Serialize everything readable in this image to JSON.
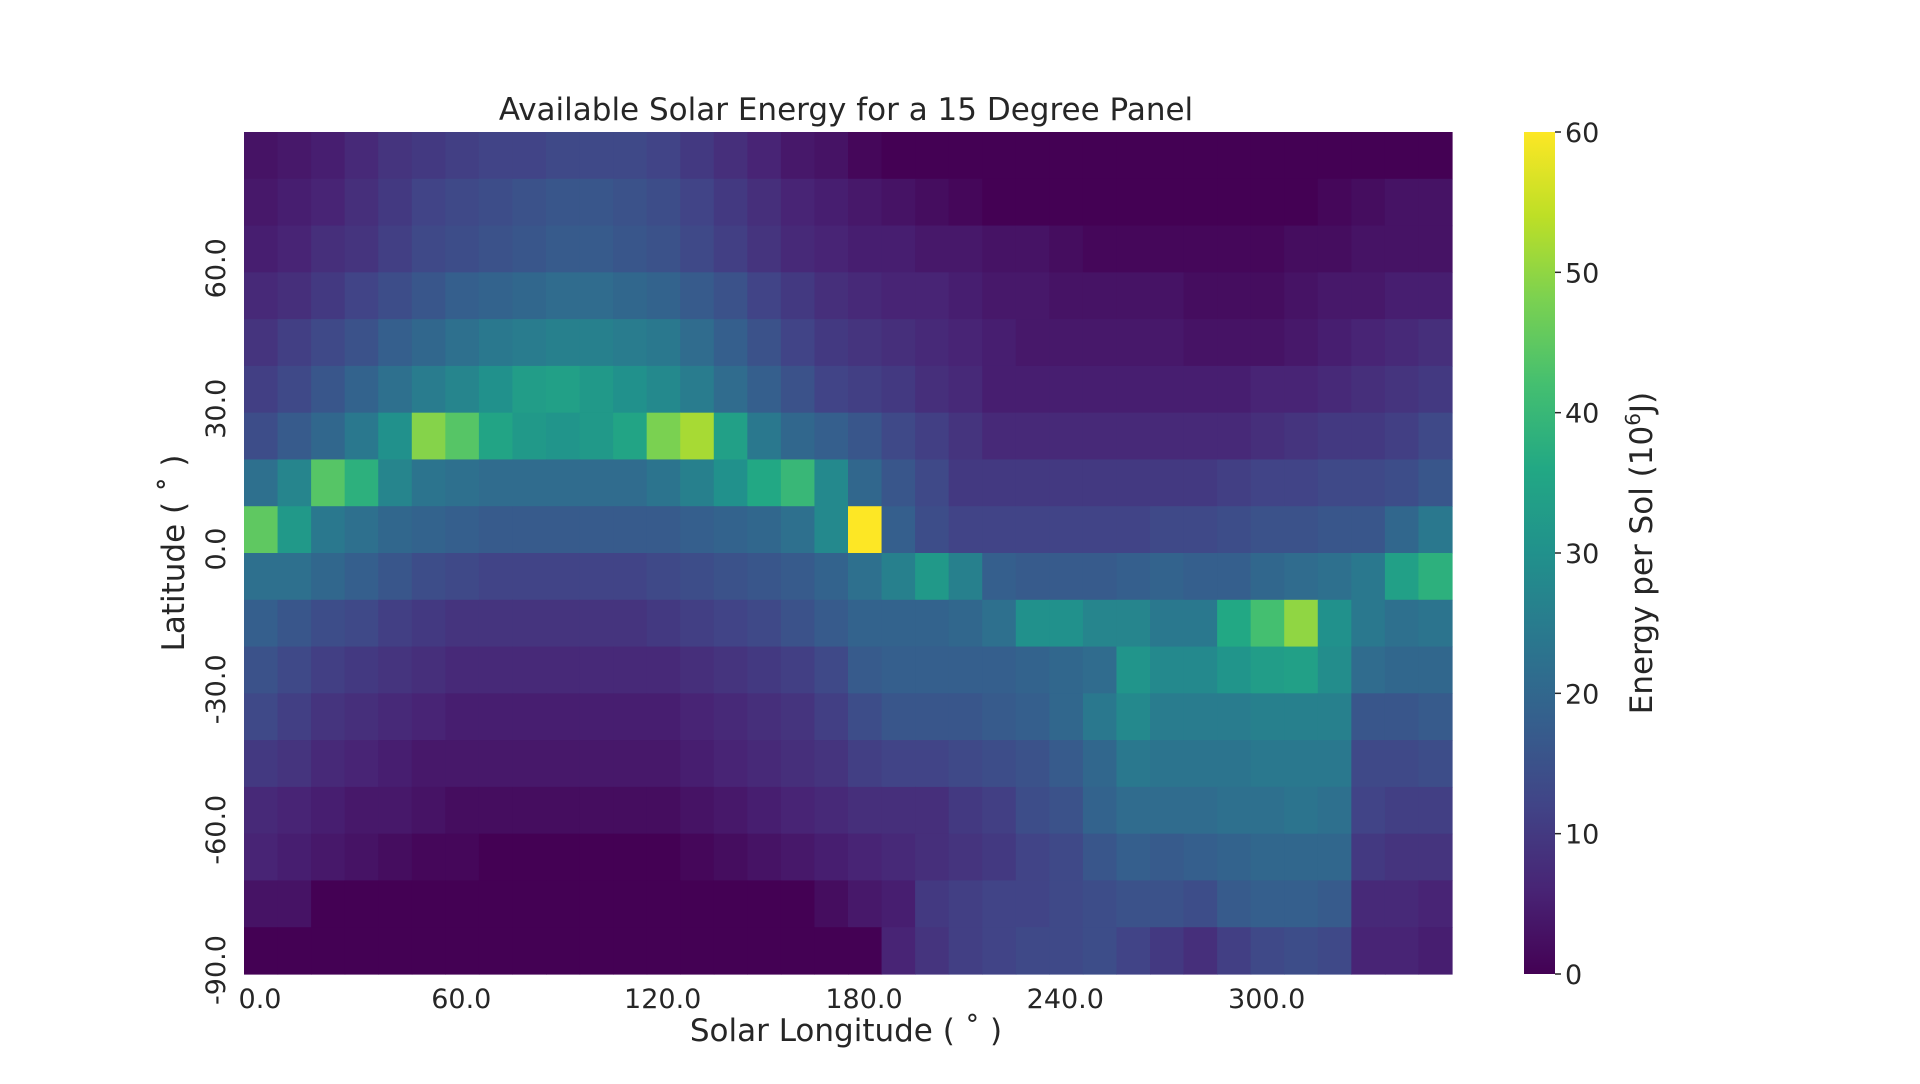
{
  "chart_data": {
    "type": "heatmap",
    "title": "Available Solar Energy for a 15 Degree Panel",
    "xlabel": "Solar Longitude ( ˚ )",
    "ylabel": "Latitude ( ˚ )",
    "colorbar_label_main": "Energy per Sol (10",
    "colorbar_label_sup": "6",
    "colorbar_label_end": "J)",
    "colormap": "viridis",
    "vmin": 0,
    "vmax": 60,
    "colorbar_ticks": [
      "0",
      "10",
      "20",
      "30",
      "40",
      "50",
      "60"
    ],
    "x": [
      0,
      10,
      20,
      30,
      40,
      50,
      60,
      70,
      80,
      90,
      100,
      110,
      120,
      130,
      140,
      150,
      160,
      170,
      180,
      190,
      200,
      210,
      220,
      230,
      240,
      250,
      260,
      270,
      280,
      290,
      300,
      310,
      320,
      330,
      340,
      350
    ],
    "y": [
      -90,
      -80,
      -70,
      -60,
      -50,
      -40,
      -30,
      -20,
      -10,
      0,
      10,
      20,
      30,
      40,
      50,
      60,
      70,
      80
    ],
    "x_tick_labels": [
      {
        "value": 0,
        "label": "0.0"
      },
      {
        "value": 60,
        "label": "60.0"
      },
      {
        "value": 120,
        "label": "120.0"
      },
      {
        "value": 180,
        "label": "180.0"
      },
      {
        "value": 240,
        "label": "240.0"
      },
      {
        "value": 300,
        "label": "300.0"
      }
    ],
    "y_tick_labels": [
      {
        "value": -90,
        "label": "-90.0"
      },
      {
        "value": -60,
        "label": "-60.0"
      },
      {
        "value": -30,
        "label": "-30.0"
      },
      {
        "value": 0,
        "label": "0.0"
      },
      {
        "value": 30,
        "label": "30.0"
      },
      {
        "value": 60,
        "label": "60.0"
      }
    ],
    "values_rows_top_to_bottom_lat": [
      80,
      70,
      60,
      50,
      40,
      30,
      20,
      10,
      0,
      -10,
      -20,
      -30,
      -40,
      -50,
      -60,
      -70,
      -80,
      -90
    ],
    "values": [
      [
        3,
        4,
        5,
        7,
        9,
        10,
        11,
        12,
        12,
        13,
        13,
        13,
        12,
        10,
        8,
        6,
        4,
        3,
        1,
        0,
        0,
        0,
        0,
        0,
        0,
        0,
        0,
        0,
        0,
        0,
        0,
        0,
        0,
        0,
        0,
        0
      ],
      [
        4,
        5,
        6,
        8,
        10,
        12,
        13,
        14,
        15,
        16,
        16,
        15,
        14,
        12,
        10,
        8,
        6,
        5,
        4,
        3,
        2,
        1,
        0,
        0,
        0,
        0,
        0,
        0,
        0,
        0,
        0,
        0,
        1,
        2,
        3,
        3
      ],
      [
        5,
        6,
        8,
        9,
        11,
        13,
        14,
        15,
        16,
        17,
        17,
        16,
        15,
        13,
        11,
        9,
        7,
        6,
        5,
        5,
        4,
        4,
        3,
        3,
        2,
        1,
        1,
        1,
        1,
        1,
        1,
        2,
        2,
        3,
        3,
        3
      ],
      [
        7,
        8,
        10,
        12,
        14,
        16,
        18,
        19,
        20,
        21,
        21,
        20,
        19,
        17,
        15,
        12,
        10,
        8,
        7,
        6,
        6,
        5,
        4,
        4,
        3,
        3,
        3,
        3,
        2,
        2,
        2,
        3,
        4,
        4,
        5,
        5
      ],
      [
        9,
        11,
        13,
        15,
        18,
        20,
        22,
        24,
        25,
        26,
        26,
        25,
        24,
        21,
        18,
        15,
        12,
        10,
        9,
        8,
        7,
        6,
        5,
        4,
        4,
        4,
        4,
        4,
        3,
        3,
        3,
        4,
        5,
        6,
        7,
        8
      ],
      [
        11,
        13,
        16,
        19,
        22,
        25,
        27,
        30,
        33,
        34,
        32,
        30,
        28,
        25,
        21,
        18,
        15,
        12,
        11,
        10,
        8,
        7,
        5,
        5,
        5,
        5,
        5,
        5,
        5,
        5,
        6,
        6,
        7,
        8,
        9,
        10
      ],
      [
        14,
        17,
        20,
        24,
        30,
        49,
        44,
        35,
        32,
        31,
        32,
        35,
        48,
        52,
        34,
        24,
        20,
        18,
        16,
        13,
        11,
        9,
        7,
        7,
        7,
        7,
        7,
        7,
        7,
        7,
        8,
        9,
        10,
        10,
        11,
        13
      ],
      [
        22,
        27,
        44,
        38,
        27,
        23,
        22,
        21,
        21,
        21,
        21,
        21,
        23,
        26,
        30,
        36,
        40,
        28,
        20,
        16,
        13,
        10,
        10,
        10,
        10,
        10,
        10,
        10,
        10,
        11,
        12,
        12,
        13,
        13,
        14,
        16
      ],
      [
        45,
        32,
        24,
        22,
        20,
        19,
        18,
        17,
        17,
        17,
        17,
        17,
        17,
        18,
        19,
        20,
        22,
        28,
        60,
        18,
        14,
        12,
        12,
        12,
        12,
        12,
        12,
        13,
        13,
        14,
        15,
        15,
        16,
        16,
        20,
        24
      ],
      [
        22,
        22,
        20,
        18,
        16,
        14,
        13,
        12,
        12,
        12,
        12,
        12,
        13,
        14,
        15,
        16,
        17,
        19,
        22,
        26,
        32,
        26,
        18,
        17,
        17,
        17,
        18,
        19,
        18,
        18,
        20,
        21,
        22,
        24,
        34,
        38
      ],
      [
        18,
        16,
        14,
        13,
        11,
        10,
        9,
        9,
        9,
        9,
        9,
        9,
        10,
        11,
        12,
        13,
        15,
        17,
        19,
        19,
        19,
        20,
        22,
        30,
        30,
        27,
        27,
        24,
        24,
        36,
        42,
        50,
        30,
        24,
        22,
        23
      ],
      [
        15,
        13,
        11,
        10,
        9,
        8,
        7,
        7,
        7,
        7,
        7,
        7,
        7,
        8,
        9,
        10,
        11,
        13,
        17,
        18,
        18,
        18,
        18,
        19,
        20,
        21,
        31,
        28,
        28,
        31,
        33,
        34,
        29,
        21,
        20,
        20
      ],
      [
        13,
        11,
        9,
        8,
        7,
        6,
        5,
        5,
        5,
        5,
        5,
        5,
        5,
        6,
        7,
        8,
        9,
        11,
        14,
        16,
        16,
        16,
        17,
        18,
        20,
        24,
        28,
        25,
        25,
        25,
        26,
        26,
        26,
        16,
        16,
        17
      ],
      [
        10,
        9,
        7,
        6,
        5,
        4,
        4,
        4,
        4,
        4,
        4,
        4,
        4,
        5,
        6,
        7,
        8,
        9,
        11,
        12,
        12,
        13,
        14,
        15,
        17,
        20,
        24,
        23,
        23,
        23,
        24,
        24,
        24,
        13,
        13,
        14
      ],
      [
        7,
        6,
        5,
        4,
        4,
        3,
        2,
        2,
        2,
        2,
        2,
        2,
        2,
        3,
        4,
        5,
        6,
        7,
        8,
        8,
        8,
        10,
        11,
        14,
        15,
        19,
        21,
        21,
        21,
        22,
        22,
        23,
        22,
        12,
        11,
        11
      ],
      [
        6,
        5,
        4,
        3,
        2,
        1,
        1,
        0,
        0,
        0,
        0,
        0,
        0,
        1,
        2,
        3,
        4,
        5,
        6,
        7,
        8,
        9,
        10,
        12,
        13,
        16,
        18,
        17,
        18,
        19,
        20,
        20,
        20,
        10,
        9,
        9
      ],
      [
        3,
        3,
        0,
        0,
        0,
        0,
        0,
        0,
        0,
        0,
        0,
        0,
        0,
        0,
        0,
        0,
        0,
        2,
        4,
        5,
        10,
        11,
        12,
        12,
        13,
        14,
        15,
        15,
        14,
        17,
        18,
        18,
        17,
        7,
        7,
        6
      ],
      [
        0,
        0,
        0,
        0,
        0,
        0,
        0,
        0,
        0,
        0,
        0,
        0,
        0,
        0,
        0,
        0,
        0,
        0,
        0,
        6,
        9,
        11,
        12,
        13,
        13,
        14,
        12,
        10,
        8,
        11,
        13,
        14,
        13,
        6,
        6,
        5
      ]
    ]
  }
}
